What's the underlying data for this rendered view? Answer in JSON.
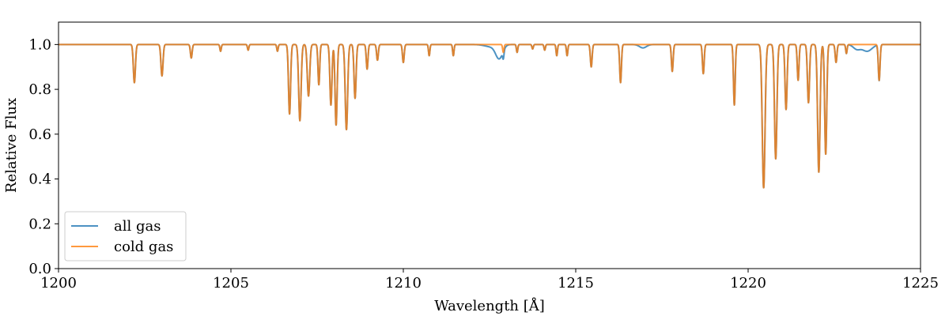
{
  "chart_data": {
    "type": "line",
    "title": "",
    "xlabel": "Wavelength [Å]",
    "ylabel": "Relative Flux",
    "xlim": [
      1200,
      1225
    ],
    "ylim": [
      0.0,
      1.1
    ],
    "xticks": [
      1200,
      1205,
      1210,
      1215,
      1220,
      1225
    ],
    "xtick_labels": [
      "1200",
      "1205",
      "1210",
      "1215",
      "1220",
      "1225"
    ],
    "yticks": [
      0.0,
      0.2,
      0.4,
      0.6,
      0.8,
      1.0
    ],
    "ytick_labels": [
      "0.0",
      "0.2",
      "0.4",
      "0.6",
      "0.8",
      "1.0"
    ],
    "grid": false,
    "legend_position": "lower-left",
    "continuum": 1.0,
    "series": [
      {
        "name": "all gas",
        "color": "#1f77b4",
        "absorption_lines": [
          {
            "x": 1212.55,
            "depth": 0.01,
            "width": 0.18
          },
          {
            "x": 1212.78,
            "depth": 0.06,
            "width": 0.1
          },
          {
            "x": 1216.95,
            "depth": 0.015,
            "width": 0.1
          },
          {
            "x": 1223.15,
            "depth": 0.02,
            "width": 0.1
          },
          {
            "x": 1223.45,
            "depth": 0.03,
            "width": 0.14
          }
        ]
      },
      {
        "name": "cold gas",
        "color": "#ff7f0e",
        "absorption_lines": [
          {
            "x": 1202.2,
            "depth": 0.17,
            "width": 0.03
          },
          {
            "x": 1203.0,
            "depth": 0.14,
            "width": 0.03
          },
          {
            "x": 1203.85,
            "depth": 0.06,
            "width": 0.025
          },
          {
            "x": 1204.7,
            "depth": 0.03,
            "width": 0.02
          },
          {
            "x": 1205.5,
            "depth": 0.025,
            "width": 0.02
          },
          {
            "x": 1206.35,
            "depth": 0.03,
            "width": 0.02
          },
          {
            "x": 1206.7,
            "depth": 0.31,
            "width": 0.03
          },
          {
            "x": 1207.0,
            "depth": 0.34,
            "width": 0.035
          },
          {
            "x": 1207.25,
            "depth": 0.23,
            "width": 0.035
          },
          {
            "x": 1207.55,
            "depth": 0.18,
            "width": 0.025
          },
          {
            "x": 1207.9,
            "depth": 0.27,
            "width": 0.03
          },
          {
            "x": 1208.05,
            "depth": 0.36,
            "width": 0.03
          },
          {
            "x": 1208.35,
            "depth": 0.38,
            "width": 0.035
          },
          {
            "x": 1208.6,
            "depth": 0.24,
            "width": 0.03
          },
          {
            "x": 1208.95,
            "depth": 0.11,
            "width": 0.025
          },
          {
            "x": 1209.25,
            "depth": 0.07,
            "width": 0.025
          },
          {
            "x": 1210.0,
            "depth": 0.08,
            "width": 0.025
          },
          {
            "x": 1210.75,
            "depth": 0.05,
            "width": 0.02
          },
          {
            "x": 1211.45,
            "depth": 0.05,
            "width": 0.02
          },
          {
            "x": 1212.9,
            "depth": 0.035,
            "width": 0.02
          },
          {
            "x": 1213.3,
            "depth": 0.035,
            "width": 0.02
          },
          {
            "x": 1213.75,
            "depth": 0.02,
            "width": 0.02
          },
          {
            "x": 1214.1,
            "depth": 0.025,
            "width": 0.02
          },
          {
            "x": 1214.45,
            "depth": 0.05,
            "width": 0.02
          },
          {
            "x": 1214.75,
            "depth": 0.05,
            "width": 0.02
          },
          {
            "x": 1215.45,
            "depth": 0.1,
            "width": 0.025
          },
          {
            "x": 1216.3,
            "depth": 0.17,
            "width": 0.025
          },
          {
            "x": 1217.8,
            "depth": 0.12,
            "width": 0.025
          },
          {
            "x": 1218.7,
            "depth": 0.13,
            "width": 0.025
          },
          {
            "x": 1219.6,
            "depth": 0.27,
            "width": 0.025
          },
          {
            "x": 1220.45,
            "depth": 0.64,
            "width": 0.04
          },
          {
            "x": 1220.8,
            "depth": 0.51,
            "width": 0.035
          },
          {
            "x": 1221.1,
            "depth": 0.29,
            "width": 0.03
          },
          {
            "x": 1221.45,
            "depth": 0.16,
            "width": 0.025
          },
          {
            "x": 1221.75,
            "depth": 0.26,
            "width": 0.03
          },
          {
            "x": 1222.05,
            "depth": 0.57,
            "width": 0.035
          },
          {
            "x": 1222.25,
            "depth": 0.49,
            "width": 0.03
          },
          {
            "x": 1222.55,
            "depth": 0.08,
            "width": 0.025
          },
          {
            "x": 1222.85,
            "depth": 0.04,
            "width": 0.02
          },
          {
            "x": 1223.8,
            "depth": 0.16,
            "width": 0.025
          }
        ]
      }
    ]
  }
}
